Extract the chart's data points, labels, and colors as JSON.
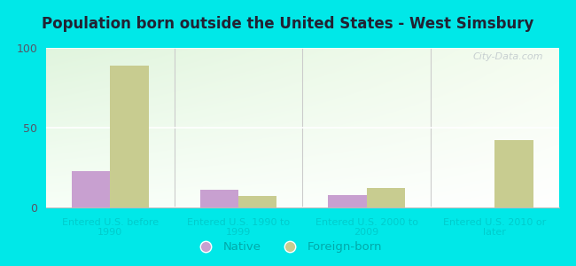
{
  "title": "Population born outside the United States - West Simsbury",
  "categories": [
    "Entered U.S. before\n1990",
    "Entered U.S. 1990 to\n1999",
    "Entered U.S. 2000 to\n2009",
    "Entered U.S. 2010 or\nlater"
  ],
  "native_values": [
    23,
    11,
    8,
    0
  ],
  "foreign_values": [
    89,
    7,
    12,
    42
  ],
  "native_color": "#c8a0d0",
  "foreign_color": "#c8cc90",
  "ylim": [
    0,
    100
  ],
  "yticks": [
    0,
    50,
    100
  ],
  "background_cyan": "#00e8e8",
  "bar_width": 0.3,
  "legend_native": "Native",
  "legend_foreign": "Foreign-born",
  "watermark": "City-Data.com",
  "title_color": "#222233",
  "tick_color": "#00cccc",
  "grid_color": "#e8eedd"
}
